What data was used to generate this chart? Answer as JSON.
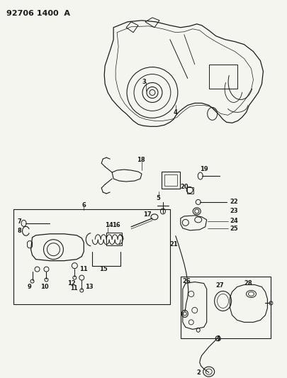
{
  "title": "92706 1400 A",
  "bg_color": "#f5f5f0",
  "line_color": "#1a1a1a",
  "fig_width": 4.05,
  "fig_height": 5.33,
  "dpi": 100
}
